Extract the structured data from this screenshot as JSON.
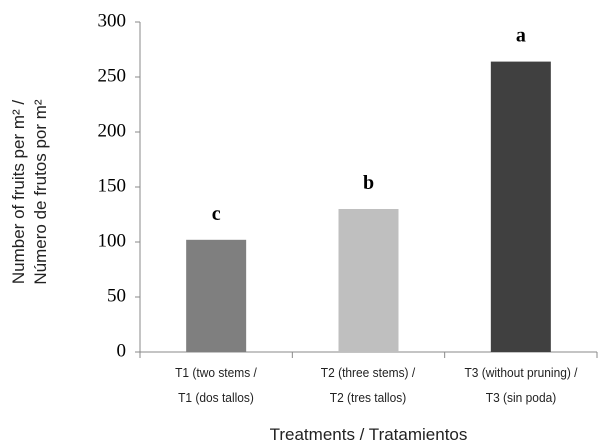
{
  "chart_data": {
    "type": "bar",
    "y_label": "Number of fruits per m² /\nNúmero de frutos por m²",
    "x_label": "Treatments / Tratamientos",
    "categories": [
      "T1 (two stems /\nT1 (dos tallos)",
      "T2 (three stems) /\nT2 (tres tallos)",
      "T3 (without pruning) /\nT3 (sin poda)"
    ],
    "values": [
      102,
      130,
      264
    ],
    "colors": [
      "#7f7f7f",
      "#bfbfbf",
      "#404040"
    ],
    "bar_labels": [
      "c",
      "b",
      "a"
    ],
    "ylim": [
      0,
      300
    ],
    "yticks": [
      0,
      50,
      100,
      150,
      200,
      250,
      300
    ],
    "grid": false
  }
}
